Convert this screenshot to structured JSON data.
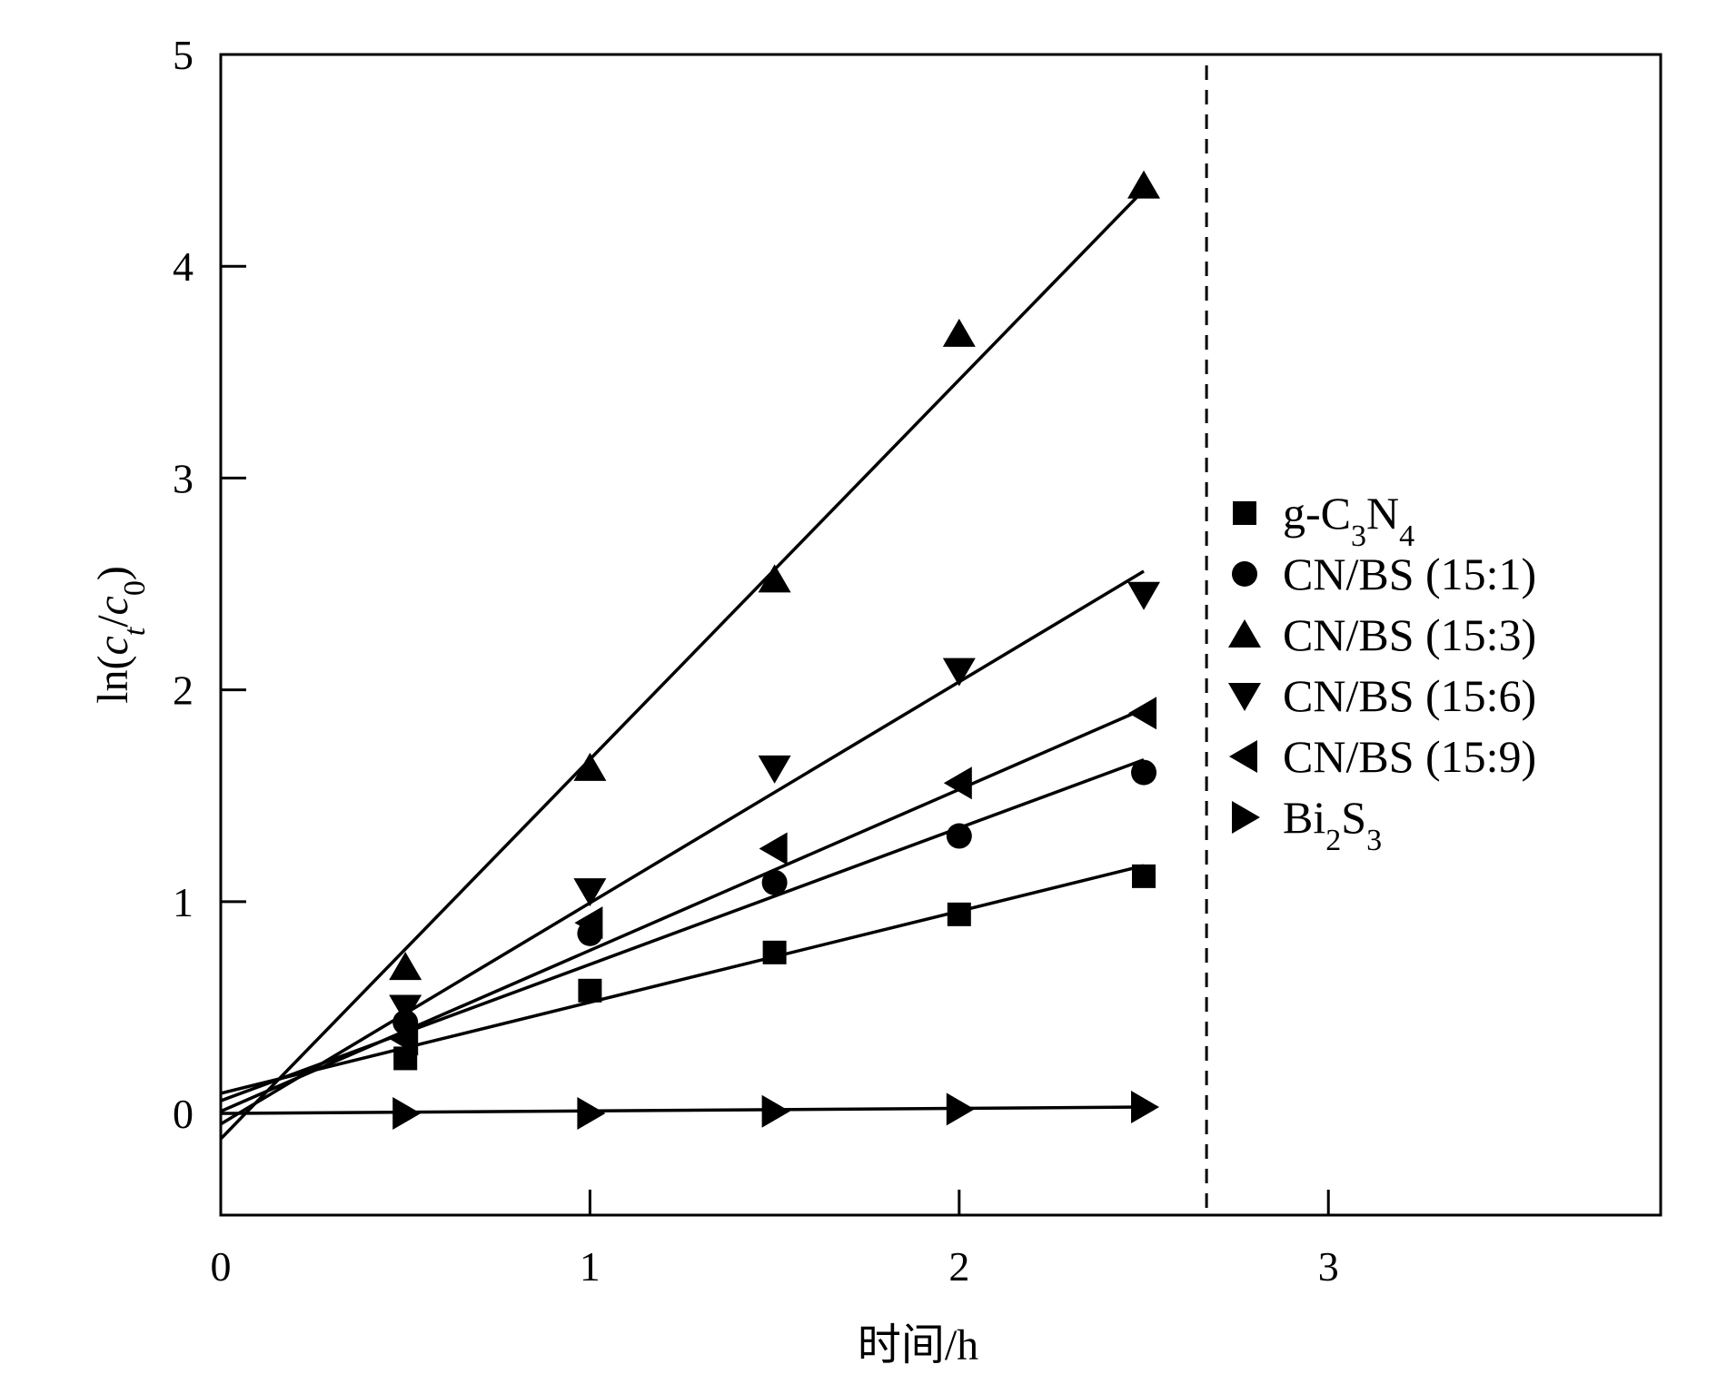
{
  "chart_data": {
    "type": "scatter",
    "xlabel": "时间/h",
    "ylabel": {
      "prefix": "ln(",
      "c_t_base": "c",
      "c_t_sub": "t",
      "slash": "/",
      "c_0_base": "c",
      "c_0_sub": "0",
      "suffix": ")"
    },
    "xlim": [
      0,
      3.9
    ],
    "ylim": [
      -0.48,
      5
    ],
    "xticks": [
      0,
      1,
      2,
      3
    ],
    "xtick_labels": [
      "0",
      "1",
      "2",
      "3"
    ],
    "yticks": [
      0,
      1,
      2,
      3,
      4,
      5
    ],
    "ytick_labels": [
      "0",
      "1",
      "2",
      "3",
      "4",
      "5"
    ],
    "grid": false,
    "legend_position": "right",
    "reference_line": {
      "x": 2.67,
      "style": "dashed"
    },
    "series": [
      {
        "key": "gc3n4",
        "name_parts": [
          [
            "g-C",
            ""
          ],
          [
            "3",
            "sub"
          ],
          [
            "N",
            ""
          ],
          [
            "4",
            "sub"
          ]
        ],
        "marker": "square",
        "x": [
          0.5,
          1.0,
          1.5,
          2.0,
          2.5
        ],
        "y": [
          0.26,
          0.58,
          0.76,
          0.94,
          1.12
        ],
        "fit": {
          "x": [
            0,
            2.5
          ],
          "y": [
            0.095,
            1.17
          ]
        }
      },
      {
        "key": "cnbs_15_1",
        "name_parts": [
          [
            "CN/BS (15:1)",
            ""
          ]
        ],
        "marker": "circle",
        "x": [
          0.5,
          1.0,
          1.5,
          2.0,
          2.5
        ],
        "y": [
          0.43,
          0.85,
          1.09,
          1.31,
          1.61
        ],
        "fit": {
          "x": [
            0,
            2.5
          ],
          "y": [
            0.06,
            1.67
          ]
        }
      },
      {
        "key": "cnbs_15_3",
        "name_parts": [
          [
            "CN/BS (15:3)",
            ""
          ]
        ],
        "marker": "triangle-up",
        "x": [
          0.5,
          1.0,
          1.5,
          2.0,
          2.5
        ],
        "y": [
          0.69,
          1.63,
          2.52,
          3.68,
          4.38
        ],
        "fit": {
          "x": [
            0,
            2.5
          ],
          "y": [
            -0.12,
            4.36
          ]
        }
      },
      {
        "key": "cnbs_15_6",
        "name_parts": [
          [
            "CN/BS (15:6)",
            ""
          ]
        ],
        "marker": "triangle-down",
        "x": [
          0.5,
          1.0,
          1.5,
          2.0,
          2.5
        ],
        "y": [
          0.5,
          1.05,
          1.63,
          2.09,
          2.45
        ],
        "fit": {
          "x": [
            0,
            2.5
          ],
          "y": [
            -0.05,
            2.56
          ]
        }
      },
      {
        "key": "cnbs_15_9",
        "name_parts": [
          [
            "CN/BS (15:9)",
            ""
          ]
        ],
        "marker": "triangle-left",
        "x": [
          0.5,
          1.0,
          1.5,
          2.0,
          2.5
        ],
        "y": [
          0.35,
          0.9,
          1.25,
          1.56,
          1.89
        ],
        "fit": {
          "x": [
            0,
            2.5
          ],
          "y": [
            0.01,
            1.91
          ]
        }
      },
      {
        "key": "bi2s3",
        "name_parts": [
          [
            "Bi",
            ""
          ],
          [
            "2",
            "sub"
          ],
          [
            "S",
            ""
          ],
          [
            "3",
            "sub"
          ]
        ],
        "marker": "triangle-right",
        "x": [
          0.5,
          1.0,
          1.5,
          2.0,
          2.5
        ],
        "y": [
          0.0,
          0.0,
          0.01,
          0.02,
          0.03
        ],
        "fit": {
          "x": [
            0,
            2.5
          ],
          "y": [
            0.0,
            0.03
          ]
        }
      }
    ]
  }
}
